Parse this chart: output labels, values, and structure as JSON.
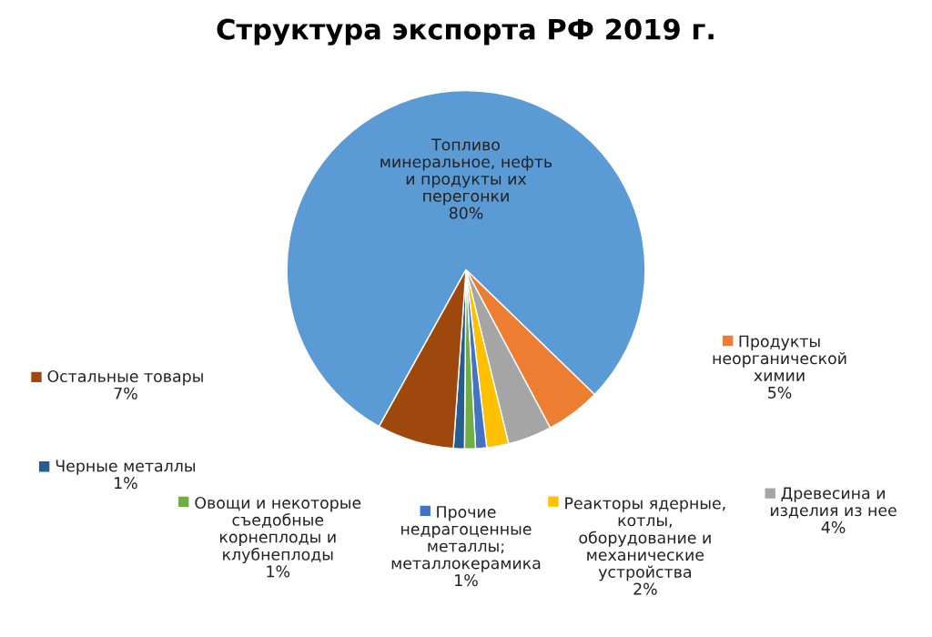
{
  "chart_data": {
    "type": "pie",
    "title": "Структура экспорта РФ 2019 г.",
    "categories": [
      "Топливо\nминеральное, нефть\nи продукты их\nперегонки",
      "Продукты\nнеорганической\nхимии",
      "Древесина и\nизделия из нее",
      "Реакторы ядерные,\nкотлы,\nоборудование и\nмеханические\nустройства",
      "Прочие\nнедрагоценные\nметаллы;\nметаллокерамика",
      "Овощи и некоторые\nсъедобные\nкорнеплоды и\nклубнеплоды",
      "Черные металлы",
      "Остальные товары"
    ],
    "values": [
      80,
      5,
      4,
      2,
      1,
      1,
      1,
      7
    ],
    "legend": "bottom",
    "value_labels": [
      "80%",
      "5%",
      "4%",
      "2%",
      "1%",
      "1%",
      "1%",
      "7%"
    ],
    "colors": [
      "#5b9bd5",
      "#ed7d31",
      "#a5a5a5",
      "#ffc000",
      "#4472c4",
      "#70ad47",
      "#255e91",
      "#9e480e"
    ]
  }
}
